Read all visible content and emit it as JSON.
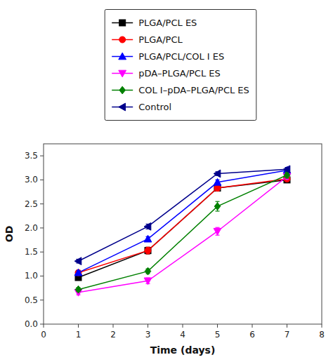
{
  "chart_data": {
    "type": "line",
    "x": [
      1,
      3,
      5,
      7
    ],
    "series": [
      {
        "name": "PLGA/PCL ES",
        "color": "#000000",
        "marker": "square",
        "values": [
          0.97,
          1.53,
          2.83,
          3.0
        ],
        "errors": [
          0.05,
          0.07,
          0.06,
          0.05
        ]
      },
      {
        "name": "PLGA/PCL",
        "color": "#ff0000",
        "marker": "circle",
        "values": [
          1.07,
          1.53,
          2.83,
          3.02
        ],
        "errors": [
          0.05,
          0.07,
          0.06,
          0.05
        ]
      },
      {
        "name": "PLGA/PCL/COL I ES",
        "color": "#0000ff",
        "marker": "triangle-up",
        "values": [
          1.07,
          1.77,
          2.95,
          3.2
        ],
        "errors": [
          0.04,
          0.05,
          0.05,
          0.04
        ]
      },
      {
        "name": "pDA–PLGA/PCL ES",
        "color": "#ff00ff",
        "marker": "triangle-down",
        "values": [
          0.66,
          0.9,
          1.93,
          3.07
        ],
        "errors": [
          0.05,
          0.06,
          0.08,
          0.06
        ]
      },
      {
        "name": "COL I–pDA–PLGA/PCL ES",
        "color": "#008000",
        "marker": "diamond",
        "values": [
          0.72,
          1.1,
          2.45,
          3.1
        ],
        "errors": [
          0.04,
          0.05,
          0.1,
          0.06
        ]
      },
      {
        "name": "Control",
        "color": "#00008b",
        "marker": "triangle-left",
        "values": [
          1.31,
          2.03,
          3.13,
          3.22
        ],
        "errors": [
          0.04,
          0.05,
          0.04,
          0.04
        ]
      }
    ],
    "xlabel": "Time (days)",
    "ylabel": "OD",
    "xlim": [
      0,
      8
    ],
    "ylim": [
      0.0,
      3.75
    ],
    "xticks": [
      0,
      1,
      2,
      3,
      4,
      5,
      6,
      7,
      8
    ],
    "yticks": [
      {
        "value": 0.0,
        "label": "0.0"
      },
      0.5,
      {
        "value": 1.0,
        "label": "1.0"
      },
      1.5,
      {
        "value": 2.0,
        "label": "2.0"
      },
      2.5,
      {
        "value": 3.0,
        "label": "3.0"
      },
      3.5
    ],
    "legend": "top",
    "grid": false
  }
}
